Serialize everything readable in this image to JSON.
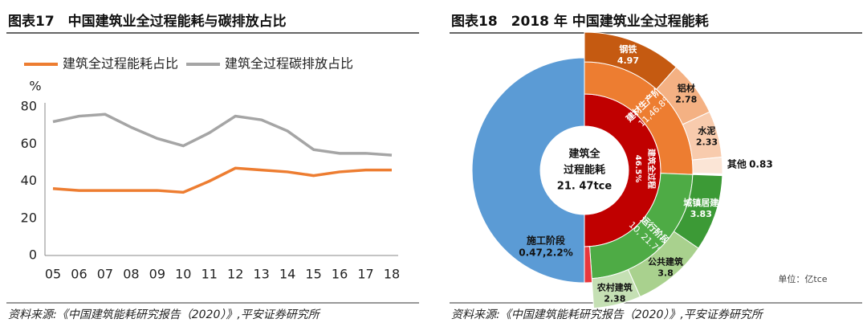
{
  "chart_data": [
    {
      "type": "line",
      "title": "图表17　中国建筑业全过程能耗与碳排放占比",
      "y_label": "%",
      "categories": [
        "05",
        "06",
        "07",
        "08",
        "09",
        "10",
        "11",
        "12",
        "13",
        "14",
        "15",
        "16",
        "17",
        "18"
      ],
      "series": [
        {
          "name": "建筑全过程能耗占比",
          "color": "#ed7d31",
          "values": [
            36,
            35,
            35,
            35,
            35,
            34,
            40,
            47,
            46,
            45,
            43,
            45,
            46,
            46
          ]
        },
        {
          "name": "建筑全过程碳排放占比",
          "color": "#a5a5a5",
          "values": [
            72,
            75,
            76,
            69,
            63,
            59,
            66,
            75,
            73,
            67,
            57,
            55,
            55,
            54
          ]
        }
      ],
      "ylim": [
        0,
        80
      ],
      "yticks": [
        0,
        20,
        40,
        60,
        80
      ],
      "grid": false,
      "source": "资料来源:《中国建筑能耗研究报告（2020）》,平安证券研究所"
    },
    {
      "type": "sunburst",
      "title": "图表18　2018 年 中国建筑业全过程能耗",
      "center_label": [
        "建筑全",
        "过程能耗",
        "21. 47tce"
      ],
      "total": 21.47,
      "ring_label": [
        "建筑全过程",
        "46.5%"
      ],
      "unit": "单位：亿tce",
      "stages": [
        {
          "name": "建材生产阶段",
          "value": 11,
          "value_label": "11,46.8%",
          "color": "#ed7d31",
          "items": [
            {
              "name": "钢铁",
              "value": 4.97,
              "color": "#c55a11"
            },
            {
              "name": "铝材",
              "value": 2.78,
              "color": "#f4b183"
            },
            {
              "name": "水泥",
              "value": 2.33,
              "color": "#f8cbad"
            },
            {
              "name": "其他",
              "value": 0.83,
              "color": "#fbe5d6"
            }
          ]
        },
        {
          "name": "运行阶段",
          "value": 10,
          "value_label": "10, 21.7%",
          "color": "#4eab45",
          "items": [
            {
              "name": "城镇居建",
              "value": 3.83,
              "color": "#3c9a36"
            },
            {
              "name": "公共建筑",
              "value": 3.8,
              "color": "#a9d18e"
            },
            {
              "name": "农村建筑",
              "value": 2.38,
              "color": "#c5e0b4"
            }
          ]
        },
        {
          "name": "施工阶段",
          "value": 0.47,
          "value_label": "0.47,2.2%",
          "color": "#e8383d",
          "items": []
        }
      ],
      "source": "资料来源:《中国建筑能耗研究报告（2020）》,平安证券研究所"
    }
  ]
}
